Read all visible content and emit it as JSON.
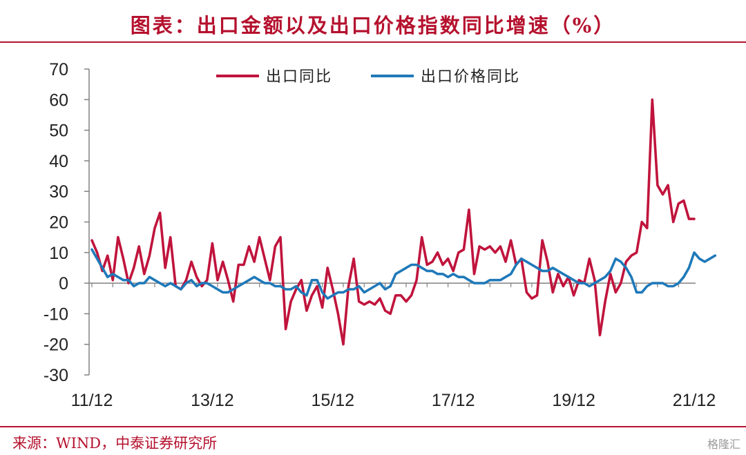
{
  "header": {
    "title": "图表：出口金额以及出口价格指数同比增速（%）"
  },
  "footer": {
    "source": "来源：WIND，中泰证券研究所",
    "watermark": "格隆汇"
  },
  "chart_data": {
    "type": "line",
    "title": "图表：出口金额以及出口价格指数同比增速（%）",
    "xlabel": "",
    "ylabel": "",
    "ylim": [
      -30,
      70
    ],
    "yticks": [
      70,
      60,
      50,
      40,
      30,
      20,
      10,
      0,
      -10,
      -20,
      -30
    ],
    "xticks": [
      "11/12",
      "13/12",
      "15/12",
      "17/12",
      "19/12",
      "21/12"
    ],
    "legend": "top-center",
    "grid": false,
    "x_start": "2011-12",
    "x_end": "2021-12",
    "series": [
      {
        "name": "出口同比",
        "color": "#c0143c",
        "values": [
          14,
          10,
          4,
          9,
          1,
          15,
          8,
          0,
          5,
          12,
          3,
          9,
          18,
          23,
          5,
          15,
          -1,
          -2,
          1,
          7,
          2,
          -1,
          1,
          13,
          1,
          7,
          1,
          -6,
          6,
          6,
          12,
          7,
          15,
          8,
          1,
          12,
          15,
          -15,
          -6,
          -2,
          1,
          -9,
          -4,
          -1,
          -8,
          5,
          -2,
          -10,
          -20,
          -1,
          8,
          -6,
          -7,
          -6,
          -7,
          -5,
          -9,
          -10,
          -4,
          -4,
          -6,
          -4,
          1,
          15,
          6,
          7,
          10,
          6,
          8,
          4,
          10,
          11,
          24,
          3,
          12,
          11,
          12,
          10,
          12,
          7,
          14,
          6,
          8,
          -3,
          -5,
          -4,
          14,
          7,
          -3,
          3,
          -1,
          2,
          -4,
          1,
          0,
          8,
          1,
          -17,
          -6,
          3,
          -3,
          0,
          7,
          9,
          10,
          20,
          18,
          60,
          32,
          29,
          32,
          20,
          26,
          27,
          21,
          21
        ]
      },
      {
        "name": "出口价格同比",
        "color": "#1f79b9",
        "values": [
          11,
          8,
          5,
          2,
          3,
          2,
          1,
          1,
          -1,
          0,
          0,
          2,
          1,
          0,
          -1,
          0,
          -1,
          -2,
          0,
          1,
          -1,
          0,
          0,
          -1,
          -2,
          -3,
          -3,
          -2,
          -1,
          0,
          1,
          2,
          1,
          0,
          0,
          -1,
          -1,
          -2,
          -2,
          -1,
          -3,
          -4,
          1,
          1,
          -3,
          -5,
          -4,
          -3,
          -3,
          -2,
          -2,
          -1,
          -3,
          -2,
          -1,
          0,
          -2,
          -1,
          3,
          4,
          5,
          6,
          6,
          5,
          4,
          4,
          3,
          3,
          2,
          3,
          2,
          2,
          1,
          0,
          0,
          0,
          1,
          1,
          1,
          2,
          3,
          6,
          8,
          7,
          6,
          5,
          4,
          4,
          5,
          4,
          3,
          2,
          1,
          0,
          0,
          -1,
          0,
          1,
          2,
          4,
          8,
          7,
          5,
          2,
          -3,
          -3,
          -1,
          0,
          0,
          0,
          -1,
          -1,
          0,
          2,
          5,
          10,
          8,
          7,
          8,
          9
        ]
      }
    ]
  }
}
